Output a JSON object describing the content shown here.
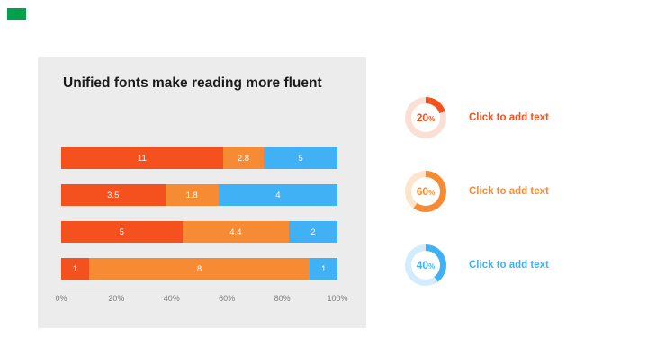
{
  "logo": {
    "color": "#00a14b"
  },
  "chart_data": [
    {
      "type": "bar",
      "variant": "horizontal-stacked",
      "title": "Unified fonts make reading more fluent",
      "xlabel": "",
      "ylabel": "",
      "x_range": [
        0,
        100
      ],
      "x_ticks": [
        "0%",
        "20%",
        "40%",
        "60%",
        "80%",
        "100%"
      ],
      "grid": false,
      "legend": "none",
      "palette": {
        "red": "#f4511e",
        "orange": "#f78b33",
        "blue": "#41b1f5"
      },
      "bars": [
        {
          "segments": [
            {
              "value": 11,
              "label": "11",
              "color": "red"
            },
            {
              "value": 2.8,
              "label": "2.8",
              "color": "orange"
            },
            {
              "value": 5,
              "label": "5",
              "color": "blue"
            }
          ]
        },
        {
          "segments": [
            {
              "value": 3.5,
              "label": "3.5",
              "color": "red"
            },
            {
              "value": 1.8,
              "label": "1.8",
              "color": "orange"
            },
            {
              "value": 4,
              "label": "4",
              "color": "blue"
            }
          ]
        },
        {
          "segments": [
            {
              "value": 5,
              "label": "5",
              "color": "red"
            },
            {
              "value": 4.4,
              "label": "4.4",
              "color": "orange"
            },
            {
              "value": 2,
              "label": "2",
              "color": "blue"
            }
          ]
        },
        {
          "segments": [
            {
              "value": 1,
              "label": "1",
              "color": "red"
            },
            {
              "value": 8,
              "label": "8",
              "color": "orange"
            },
            {
              "value": 1,
              "label": "1",
              "color": "blue"
            }
          ]
        }
      ]
    },
    {
      "type": "pie",
      "variant": "donut-gauges",
      "items": [
        {
          "percent": 20,
          "display": "20",
          "unit": "%",
          "color": "#f4511e",
          "track": "#fcdfd4",
          "label": "Click to add text"
        },
        {
          "percent": 60,
          "display": "60",
          "unit": "%",
          "color": "#f78b33",
          "track": "#fde4cb",
          "label": "Click to add text"
        },
        {
          "percent": 40,
          "display": "40",
          "unit": "%",
          "color": "#41b1f5",
          "track": "#d2ecfd",
          "label": "Click to add text"
        }
      ]
    }
  ]
}
